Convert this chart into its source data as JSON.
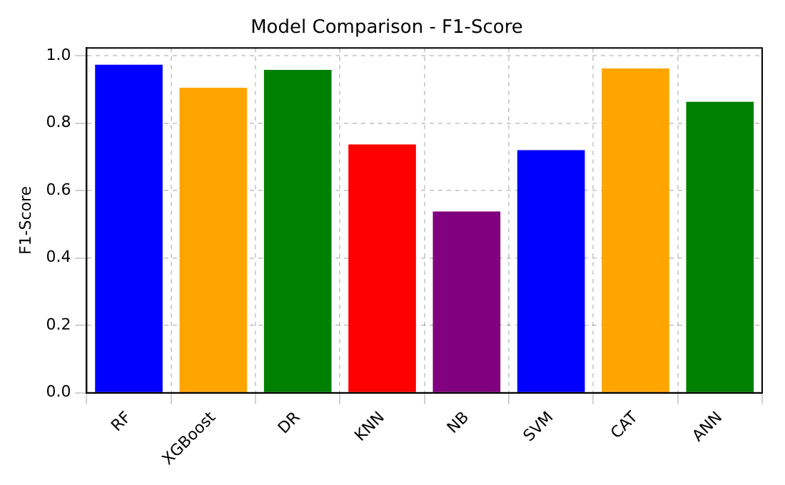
{
  "chart_data": {
    "type": "bar",
    "title": "Model Comparison - F1-Score",
    "ylabel": "F1-Score",
    "categories": [
      "RF",
      "XGBoost",
      "DR",
      "KNN",
      "NB",
      "SVM",
      "CAT",
      "ANN"
    ],
    "values": [
      0.973,
      0.905,
      0.958,
      0.737,
      0.538,
      0.72,
      0.962,
      0.863
    ],
    "colors": [
      "#0000ff",
      "#ffa500",
      "#008000",
      "#ff0000",
      "#800080",
      "#0000ff",
      "#ffa500",
      "#008000"
    ],
    "ylim": [
      0,
      1.023
    ],
    "yticks": [
      {
        "value": 0,
        "label": "0.0"
      },
      0.2,
      0.4,
      0.6,
      0.8,
      {
        "value": 1,
        "label": "1.0"
      }
    ],
    "grid": true
  }
}
